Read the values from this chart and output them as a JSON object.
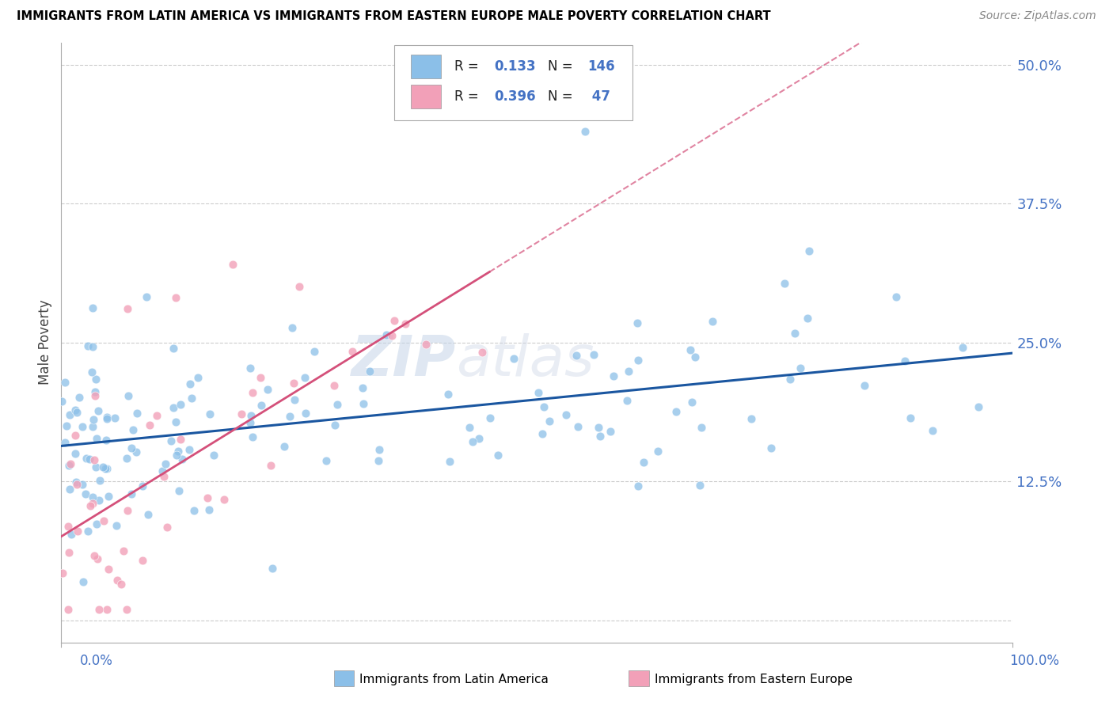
{
  "title": "IMMIGRANTS FROM LATIN AMERICA VS IMMIGRANTS FROM EASTERN EUROPE MALE POVERTY CORRELATION CHART",
  "source": "Source: ZipAtlas.com",
  "ylabel": "Male Poverty",
  "ytick_vals": [
    0.0,
    0.125,
    0.25,
    0.375,
    0.5
  ],
  "ytick_labels": [
    "",
    "12.5%",
    "25.0%",
    "37.5%",
    "50.0%"
  ],
  "color_latin": "#8BBFE8",
  "color_eastern": "#F2A0B8",
  "line_color_latin": "#1A56A0",
  "line_color_eastern": "#D4507A",
  "tick_color": "#4472C4",
  "n_latin": 146,
  "n_eastern": 47,
  "seed": 12345
}
